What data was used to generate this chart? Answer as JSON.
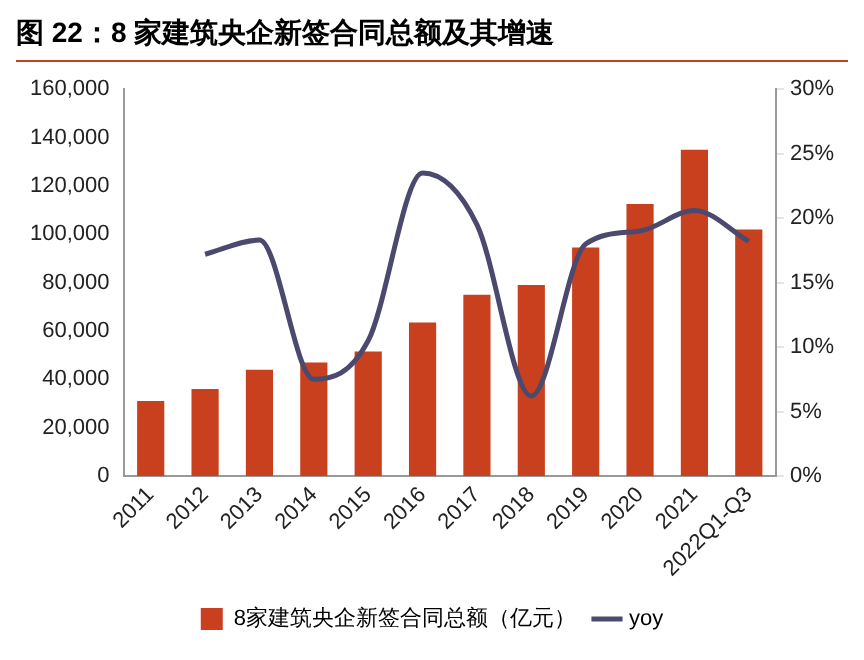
{
  "chart_data": {
    "type": "bar",
    "title": "图 22：8 家建筑央企新签合同总额及其增速",
    "categories": [
      "2011",
      "2012",
      "2013",
      "2014",
      "2015",
      "2016",
      "2017",
      "2018",
      "2019",
      "2020",
      "2021",
      "2022Q1-Q3"
    ],
    "series": [
      {
        "name": "8家建筑央企新签合同总额（亿元）",
        "color": "#c8401e",
        "values": [
          31000,
          36000,
          44000,
          47000,
          51500,
          63500,
          75000,
          79000,
          94500,
          112500,
          135000,
          102000
        ]
      },
      {
        "name": "yoy",
        "type": "line",
        "axis": "y2",
        "color": "#4b4a6e",
        "marker": "none",
        "values": [
          null,
          17.2,
          18.3,
          7.5,
          10.5,
          23.5,
          19.5,
          6.2,
          18.0,
          19.0,
          20.6,
          18.2
        ]
      }
    ],
    "ylim": [
      0,
      160000
    ],
    "yticks": [
      {
        "value": 0,
        "label": "0"
      },
      {
        "value": 20000,
        "label": "20,000"
      },
      {
        "value": 40000,
        "label": "40,000"
      },
      {
        "value": 60000,
        "label": "60,000"
      },
      {
        "value": 80000,
        "label": "80,000"
      },
      {
        "value": 100000,
        "label": "100,000"
      },
      {
        "value": 120000,
        "label": "120,000"
      },
      {
        "value": 140000,
        "label": "140,000"
      },
      {
        "value": 160000,
        "label": "160,000"
      }
    ],
    "y2lim": [
      0,
      30
    ],
    "y2ticks": [
      {
        "value": 0,
        "label": "0%"
      },
      {
        "value": 5,
        "label": "5%"
      },
      {
        "value": 10,
        "label": "10%"
      },
      {
        "value": 15,
        "label": "15%"
      },
      {
        "value": 20,
        "label": "20%"
      },
      {
        "value": 25,
        "label": "25%"
      },
      {
        "value": 30,
        "label": "30%"
      }
    ],
    "grid": false,
    "legend": "bottom"
  }
}
